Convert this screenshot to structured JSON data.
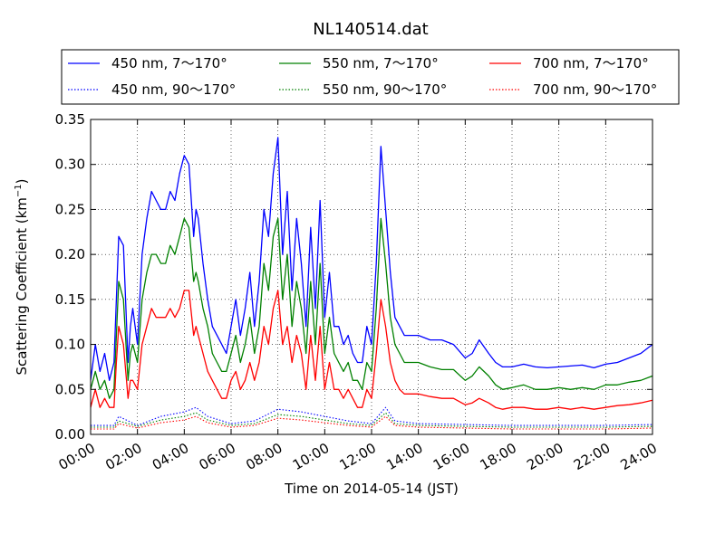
{
  "chart_data": {
    "type": "line",
    "title": "NL140514.dat",
    "xlabel": "Time on 2014-05-14 (JST)",
    "ylabel": "Scattering Coefficient (km",
    "ylabel_superscript": "−1",
    "ylabel_suffix": ")",
    "x_unit": "hours",
    "xlim": [
      0,
      24
    ],
    "ylim": [
      0,
      0.35
    ],
    "x_ticks": [
      0,
      2,
      4,
      6,
      8,
      10,
      12,
      14,
      16,
      18,
      20,
      22,
      24
    ],
    "x_tick_labels": [
      "00:00",
      "02:00",
      "04:00",
      "06:00",
      "08:00",
      "10:00",
      "12:00",
      "14:00",
      "16:00",
      "18:00",
      "20:00",
      "22:00",
      "24:00"
    ],
    "y_ticks": [
      0,
      0.05,
      0.1,
      0.15,
      0.2,
      0.25,
      0.3,
      0.35
    ],
    "y_tick_labels": [
      "0.00",
      "0.05",
      "0.10",
      "0.15",
      "0.20",
      "0.25",
      "0.30",
      "0.35"
    ],
    "grid": true,
    "legend_placement": "top, outside plot, 3 columns",
    "series": [
      {
        "name": "450 nm, 7～170°",
        "color": "#0000ff",
        "style": "solid",
        "x": [
          0,
          0.2,
          0.4,
          0.6,
          0.8,
          1.0,
          1.1,
          1.2,
          1.4,
          1.6,
          1.7,
          1.8,
          2.0,
          2.2,
          2.4,
          2.6,
          2.8,
          3.0,
          3.2,
          3.4,
          3.6,
          3.8,
          4.0,
          4.2,
          4.4,
          4.5,
          4.6,
          4.8,
          5.0,
          5.2,
          5.4,
          5.6,
          5.8,
          6.0,
          6.2,
          6.4,
          6.6,
          6.8,
          7.0,
          7.2,
          7.4,
          7.6,
          7.8,
          8.0,
          8.2,
          8.4,
          8.6,
          8.8,
          9.0,
          9.2,
          9.4,
          9.6,
          9.8,
          10.0,
          10.2,
          10.4,
          10.6,
          10.8,
          11.0,
          11.2,
          11.4,
          11.6,
          11.8,
          12.0,
          12.2,
          12.4,
          12.6,
          12.8,
          13.0,
          13.2,
          13.4,
          13.6,
          14.0,
          14.5,
          15.0,
          15.5,
          16.0,
          16.3,
          16.6,
          17.0,
          17.3,
          17.6,
          18.0,
          18.5,
          19.0,
          19.5,
          20.0,
          20.5,
          21.0,
          21.5,
          22.0,
          22.5,
          23.0,
          23.5,
          24.0
        ],
        "y": [
          0.06,
          0.1,
          0.07,
          0.09,
          0.06,
          0.08,
          0.15,
          0.22,
          0.21,
          0.08,
          0.12,
          0.14,
          0.1,
          0.2,
          0.24,
          0.27,
          0.26,
          0.25,
          0.25,
          0.27,
          0.26,
          0.29,
          0.31,
          0.3,
          0.22,
          0.25,
          0.24,
          0.19,
          0.15,
          0.12,
          0.11,
          0.1,
          0.09,
          0.12,
          0.15,
          0.11,
          0.14,
          0.18,
          0.12,
          0.17,
          0.25,
          0.22,
          0.29,
          0.33,
          0.2,
          0.27,
          0.16,
          0.24,
          0.19,
          0.12,
          0.23,
          0.14,
          0.26,
          0.13,
          0.18,
          0.12,
          0.12,
          0.1,
          0.11,
          0.09,
          0.08,
          0.08,
          0.12,
          0.1,
          0.19,
          0.32,
          0.25,
          0.18,
          0.13,
          0.12,
          0.11,
          0.11,
          0.11,
          0.105,
          0.105,
          0.1,
          0.085,
          0.09,
          0.105,
          0.09,
          0.08,
          0.075,
          0.075,
          0.078,
          0.075,
          0.074,
          0.075,
          0.076,
          0.077,
          0.074,
          0.078,
          0.08,
          0.085,
          0.09,
          0.1
        ]
      },
      {
        "name": "550 nm, 7～170°",
        "color": "#008000",
        "style": "solid",
        "x": [
          0,
          0.2,
          0.4,
          0.6,
          0.8,
          1.0,
          1.1,
          1.2,
          1.4,
          1.6,
          1.7,
          1.8,
          2.0,
          2.2,
          2.4,
          2.6,
          2.8,
          3.0,
          3.2,
          3.4,
          3.6,
          3.8,
          4.0,
          4.2,
          4.4,
          4.5,
          4.6,
          4.8,
          5.0,
          5.2,
          5.4,
          5.6,
          5.8,
          6.0,
          6.2,
          6.4,
          6.6,
          6.8,
          7.0,
          7.2,
          7.4,
          7.6,
          7.8,
          8.0,
          8.2,
          8.4,
          8.6,
          8.8,
          9.0,
          9.2,
          9.4,
          9.6,
          9.8,
          10.0,
          10.2,
          10.4,
          10.6,
          10.8,
          11.0,
          11.2,
          11.4,
          11.6,
          11.8,
          12.0,
          12.2,
          12.4,
          12.6,
          12.8,
          13.0,
          13.2,
          13.4,
          13.6,
          14.0,
          14.5,
          15.0,
          15.5,
          16.0,
          16.3,
          16.6,
          17.0,
          17.3,
          17.6,
          18.0,
          18.5,
          19.0,
          19.5,
          20.0,
          20.5,
          21.0,
          21.5,
          22.0,
          22.5,
          23.0,
          23.5,
          24.0
        ],
        "y": [
          0.05,
          0.07,
          0.05,
          0.06,
          0.04,
          0.05,
          0.11,
          0.17,
          0.15,
          0.06,
          0.09,
          0.1,
          0.08,
          0.15,
          0.18,
          0.2,
          0.2,
          0.19,
          0.19,
          0.21,
          0.2,
          0.22,
          0.24,
          0.23,
          0.17,
          0.18,
          0.17,
          0.14,
          0.12,
          0.09,
          0.08,
          0.07,
          0.07,
          0.09,
          0.11,
          0.08,
          0.1,
          0.13,
          0.09,
          0.12,
          0.19,
          0.16,
          0.22,
          0.24,
          0.15,
          0.2,
          0.12,
          0.17,
          0.14,
          0.09,
          0.17,
          0.1,
          0.19,
          0.09,
          0.13,
          0.09,
          0.08,
          0.07,
          0.08,
          0.06,
          0.06,
          0.05,
          0.08,
          0.07,
          0.14,
          0.24,
          0.19,
          0.13,
          0.1,
          0.09,
          0.08,
          0.08,
          0.08,
          0.075,
          0.072,
          0.072,
          0.06,
          0.065,
          0.075,
          0.065,
          0.055,
          0.05,
          0.052,
          0.055,
          0.05,
          0.05,
          0.052,
          0.05,
          0.052,
          0.05,
          0.055,
          0.055,
          0.058,
          0.06,
          0.065
        ]
      },
      {
        "name": "700 nm, 7～170°",
        "color": "#ff0000",
        "style": "solid",
        "x": [
          0,
          0.2,
          0.4,
          0.6,
          0.8,
          1.0,
          1.1,
          1.2,
          1.4,
          1.6,
          1.7,
          1.8,
          2.0,
          2.2,
          2.4,
          2.6,
          2.8,
          3.0,
          3.2,
          3.4,
          3.6,
          3.8,
          4.0,
          4.2,
          4.4,
          4.5,
          4.6,
          4.8,
          5.0,
          5.2,
          5.4,
          5.6,
          5.8,
          6.0,
          6.2,
          6.4,
          6.6,
          6.8,
          7.0,
          7.2,
          7.4,
          7.6,
          7.8,
          8.0,
          8.2,
          8.4,
          8.6,
          8.8,
          9.0,
          9.2,
          9.4,
          9.6,
          9.8,
          10.0,
          10.2,
          10.4,
          10.6,
          10.8,
          11.0,
          11.2,
          11.4,
          11.6,
          11.8,
          12.0,
          12.2,
          12.4,
          12.6,
          12.8,
          13.0,
          13.2,
          13.4,
          13.6,
          14.0,
          14.5,
          15.0,
          15.5,
          16.0,
          16.3,
          16.6,
          17.0,
          17.3,
          17.6,
          18.0,
          18.5,
          19.0,
          19.5,
          20.0,
          20.5,
          21.0,
          21.5,
          22.0,
          22.5,
          23.0,
          23.5,
          24.0
        ],
        "y": [
          0.03,
          0.05,
          0.03,
          0.04,
          0.03,
          0.03,
          0.08,
          0.12,
          0.1,
          0.04,
          0.06,
          0.06,
          0.05,
          0.1,
          0.12,
          0.14,
          0.13,
          0.13,
          0.13,
          0.14,
          0.13,
          0.14,
          0.16,
          0.16,
          0.11,
          0.12,
          0.11,
          0.09,
          0.07,
          0.06,
          0.05,
          0.04,
          0.04,
          0.06,
          0.07,
          0.05,
          0.06,
          0.08,
          0.06,
          0.08,
          0.12,
          0.1,
          0.14,
          0.16,
          0.1,
          0.12,
          0.08,
          0.11,
          0.09,
          0.05,
          0.11,
          0.06,
          0.12,
          0.05,
          0.08,
          0.05,
          0.05,
          0.04,
          0.05,
          0.04,
          0.03,
          0.03,
          0.05,
          0.04,
          0.09,
          0.15,
          0.12,
          0.08,
          0.06,
          0.05,
          0.045,
          0.045,
          0.045,
          0.042,
          0.04,
          0.04,
          0.033,
          0.035,
          0.04,
          0.035,
          0.03,
          0.028,
          0.03,
          0.03,
          0.028,
          0.028,
          0.03,
          0.028,
          0.03,
          0.028,
          0.03,
          0.032,
          0.033,
          0.035,
          0.038
        ]
      },
      {
        "name": "450 nm, 90～170°",
        "color": "#0000ff",
        "style": "dotted",
        "x": [
          0,
          1,
          1.2,
          2,
          3,
          4,
          4.5,
          5,
          6,
          7,
          8,
          9,
          10,
          11,
          12,
          12.6,
          13,
          14,
          16,
          18,
          20,
          22,
          24
        ],
        "y": [
          0.01,
          0.01,
          0.02,
          0.01,
          0.02,
          0.025,
          0.03,
          0.02,
          0.012,
          0.015,
          0.028,
          0.025,
          0.02,
          0.015,
          0.012,
          0.03,
          0.015,
          0.012,
          0.011,
          0.01,
          0.01,
          0.01,
          0.011
        ]
      },
      {
        "name": "550 nm, 90～170°",
        "color": "#008000",
        "style": "dotted",
        "x": [
          0,
          1,
          1.2,
          2,
          3,
          4,
          4.5,
          5,
          6,
          7,
          8,
          9,
          10,
          11,
          12,
          12.6,
          13,
          14,
          16,
          18,
          20,
          22,
          24
        ],
        "y": [
          0.008,
          0.008,
          0.015,
          0.009,
          0.016,
          0.02,
          0.024,
          0.016,
          0.01,
          0.012,
          0.022,
          0.02,
          0.016,
          0.012,
          0.01,
          0.024,
          0.012,
          0.01,
          0.009,
          0.008,
          0.008,
          0.008,
          0.009
        ]
      },
      {
        "name": "700 nm, 90～170°",
        "color": "#ff0000",
        "style": "dotted",
        "x": [
          0,
          1,
          1.2,
          2,
          3,
          4,
          4.5,
          5,
          6,
          7,
          8,
          9,
          10,
          11,
          12,
          12.6,
          13,
          14,
          16,
          18,
          20,
          22,
          24
        ],
        "y": [
          0.006,
          0.006,
          0.012,
          0.007,
          0.013,
          0.016,
          0.02,
          0.013,
          0.008,
          0.01,
          0.018,
          0.016,
          0.013,
          0.01,
          0.008,
          0.02,
          0.01,
          0.008,
          0.007,
          0.006,
          0.006,
          0.006,
          0.007
        ]
      }
    ]
  }
}
